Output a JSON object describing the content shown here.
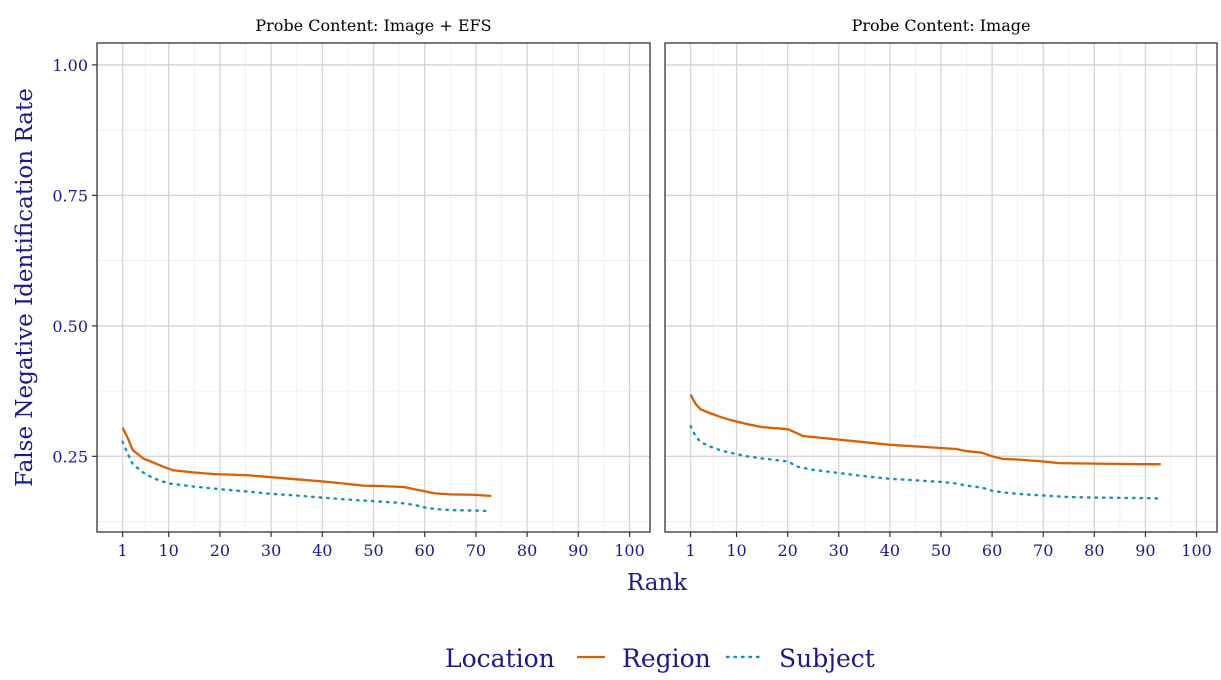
{
  "colors": {
    "axis_text": "#1a1a8c",
    "grid_major": "#d4d4d4",
    "grid_minor": "#ececec",
    "panel_border": "#333333",
    "region": "#d95f02",
    "subject": "#1a8fb5"
  },
  "chart_data": {
    "type": "line",
    "ylabel": "False Negative Identification Rate",
    "xlabel": "Rank",
    "xlim": [
      -4,
      104
    ],
    "ylim": [
      0.105,
      1.042
    ],
    "x_ticks": [
      1,
      10,
      20,
      30,
      40,
      50,
      60,
      70,
      80,
      90,
      100
    ],
    "x_tick_labels": [
      "1",
      "10",
      "20",
      "30",
      "40",
      "50",
      "60",
      "70",
      "80",
      "90",
      "100"
    ],
    "y_ticks": [
      0.25,
      0.5,
      0.75,
      1.0
    ],
    "y_tick_labels": [
      "0.25",
      "0.50",
      "0.75",
      "1.00"
    ],
    "grid": true,
    "legend": {
      "title": "Location",
      "position": "bottom",
      "entries": [
        {
          "name": "Region",
          "color": "#d95f02",
          "style": "solid"
        },
        {
          "name": "Subject",
          "color": "#1a8fb5",
          "style": "dotted"
        }
      ]
    },
    "panels": [
      {
        "title": "Probe Content: Image + EFS",
        "series": [
          {
            "name": "Region",
            "x": [
              1,
              2,
              3,
              5,
              7,
              9,
              11,
              15,
              19,
              25,
              30,
              35,
              40,
              45,
              48,
              52,
              56,
              58,
              60,
              62,
              65,
              70,
              73
            ],
            "y": [
              0.305,
              0.285,
              0.262,
              0.246,
              0.238,
              0.23,
              0.223,
              0.219,
              0.216,
              0.214,
              0.21,
              0.206,
              0.202,
              0.197,
              0.194,
              0.193,
              0.191,
              0.187,
              0.183,
              0.179,
              0.177,
              0.176,
              0.174
            ]
          },
          {
            "name": "Subject",
            "x": [
              1,
              2,
              3,
              5,
              7,
              10,
              15,
              20,
              25,
              30,
              35,
              40,
              45,
              50,
              55,
              58,
              60,
              62,
              65,
              70,
              73
            ],
            "y": [
              0.278,
              0.255,
              0.235,
              0.219,
              0.208,
              0.198,
              0.192,
              0.187,
              0.183,
              0.178,
              0.175,
              0.171,
              0.167,
              0.164,
              0.161,
              0.157,
              0.152,
              0.149,
              0.147,
              0.146,
              0.145
            ]
          }
        ]
      },
      {
        "title": "Probe Content: Image",
        "series": [
          {
            "name": "Region",
            "x": [
              1,
              2,
              3,
              5,
              7,
              9,
              12,
              15,
              20,
              21,
              23,
              30,
              35,
              40,
              45,
              50,
              53,
              55,
              58,
              60,
              62,
              65,
              70,
              73,
              80,
              90,
              93
            ],
            "y": [
              0.368,
              0.35,
              0.34,
              0.332,
              0.325,
              0.319,
              0.312,
              0.306,
              0.302,
              0.298,
              0.289,
              0.282,
              0.277,
              0.272,
              0.269,
              0.266,
              0.264,
              0.26,
              0.257,
              0.25,
              0.245,
              0.244,
              0.24,
              0.237,
              0.236,
              0.235,
              0.235
            ]
          },
          {
            "name": "Subject",
            "x": [
              1,
              2,
              3,
              5,
              7,
              10,
              12,
              15,
              20,
              22,
              25,
              30,
              35,
              40,
              45,
              50,
              53,
              55,
              58,
              60,
              62,
              65,
              70,
              75,
              80,
              90,
              93
            ],
            "y": [
              0.308,
              0.288,
              0.277,
              0.268,
              0.261,
              0.254,
              0.25,
              0.246,
              0.24,
              0.23,
              0.224,
              0.218,
              0.212,
              0.207,
              0.204,
              0.201,
              0.198,
              0.194,
              0.19,
              0.184,
              0.181,
              0.178,
              0.175,
              0.172,
              0.171,
              0.17,
              0.169
            ]
          }
        ]
      }
    ]
  }
}
